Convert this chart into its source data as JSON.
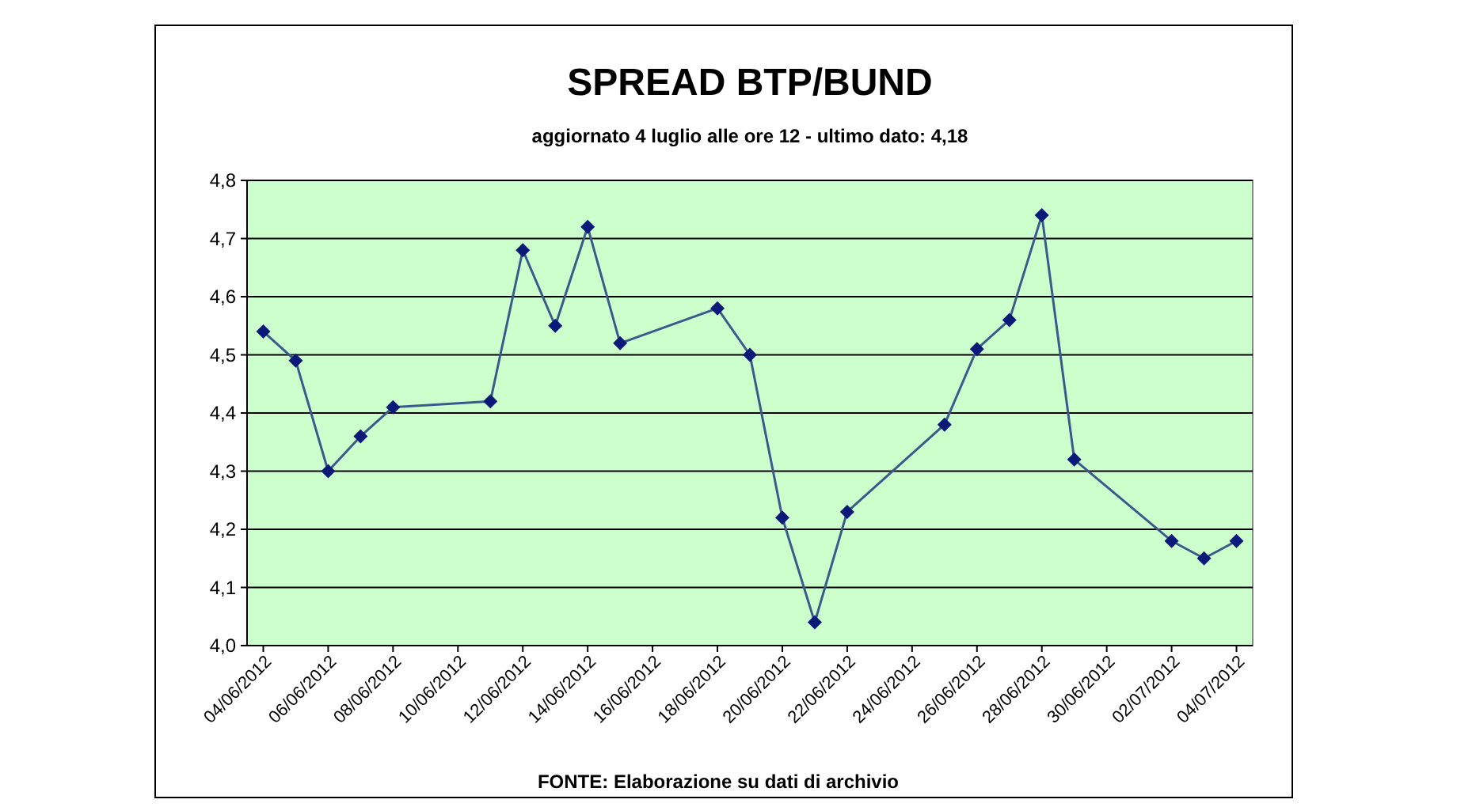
{
  "chart_data": {
    "type": "line",
    "title": "SPREAD BTP/BUND",
    "subtitle": "aggiornato 4 luglio alle ore 12 - ultimo dato: 4,18",
    "annotations": [
      "FONTE: Elaborazione su dati di archivio"
    ],
    "x": [
      "2012-06-04",
      "2012-06-05",
      "2012-06-06",
      "2012-06-07",
      "2012-06-08",
      "2012-06-11",
      "2012-06-12",
      "2012-06-13",
      "2012-06-14",
      "2012-06-15",
      "2012-06-18",
      "2012-06-19",
      "2012-06-20",
      "2012-06-21",
      "2012-06-22",
      "2012-06-25",
      "2012-06-26",
      "2012-06-27",
      "2012-06-28",
      "2012-06-29",
      "2012-07-02",
      "2012-07-03",
      "2012-07-04"
    ],
    "series": [
      {
        "color": "#0b1a78",
        "values": [
          4.54,
          4.49,
          4.3,
          4.36,
          4.41,
          4.42,
          4.68,
          4.55,
          4.72,
          4.52,
          4.58,
          4.5,
          4.22,
          4.04,
          4.23,
          4.38,
          4.51,
          4.56,
          4.74,
          4.32,
          4.18,
          4.15,
          4.18
        ]
      }
    ],
    "xlim": [
      "2012-06-03T12:00",
      "2012-07-04T12:00"
    ],
    "xticks": [
      {
        "value": "2012-06-04",
        "label": "04/06/2012"
      },
      {
        "value": "2012-06-06",
        "label": "06/06/2012"
      },
      {
        "value": "2012-06-08",
        "label": "08/06/2012"
      },
      {
        "value": "2012-06-10",
        "label": "10/06/2012"
      },
      {
        "value": "2012-06-12",
        "label": "12/06/2012"
      },
      {
        "value": "2012-06-14",
        "label": "14/06/2012"
      },
      {
        "value": "2012-06-16",
        "label": "16/06/2012"
      },
      {
        "value": "2012-06-18",
        "label": "18/06/2012"
      },
      {
        "value": "2012-06-20",
        "label": "20/06/2012"
      },
      {
        "value": "2012-06-22",
        "label": "22/06/2012"
      },
      {
        "value": "2012-06-24",
        "label": "24/06/2012"
      },
      {
        "value": "2012-06-26",
        "label": "26/06/2012"
      },
      {
        "value": "2012-06-28",
        "label": "28/06/2012"
      },
      {
        "value": "2012-06-30",
        "label": "30/06/2012"
      },
      {
        "value": "2012-07-02",
        "label": "02/07/2012"
      },
      {
        "value": "2012-07-04",
        "label": "04/07/2012"
      }
    ],
    "ylim": [
      4.0,
      4.8
    ],
    "yticks": [
      {
        "value": 4.0,
        "label": "4,0"
      },
      {
        "value": 4.1,
        "label": "4,1"
      },
      {
        "value": 4.2,
        "label": "4,2"
      },
      {
        "value": 4.3,
        "label": "4,3"
      },
      {
        "value": 4.4,
        "label": "4,4"
      },
      {
        "value": 4.5,
        "label": "4,5"
      },
      {
        "value": 4.6,
        "label": "4,6"
      },
      {
        "value": 4.7,
        "label": "4,7"
      },
      {
        "value": 4.8,
        "label": "4,8"
      }
    ],
    "grid": "y",
    "marker": "diamond",
    "line_style": "solid"
  }
}
